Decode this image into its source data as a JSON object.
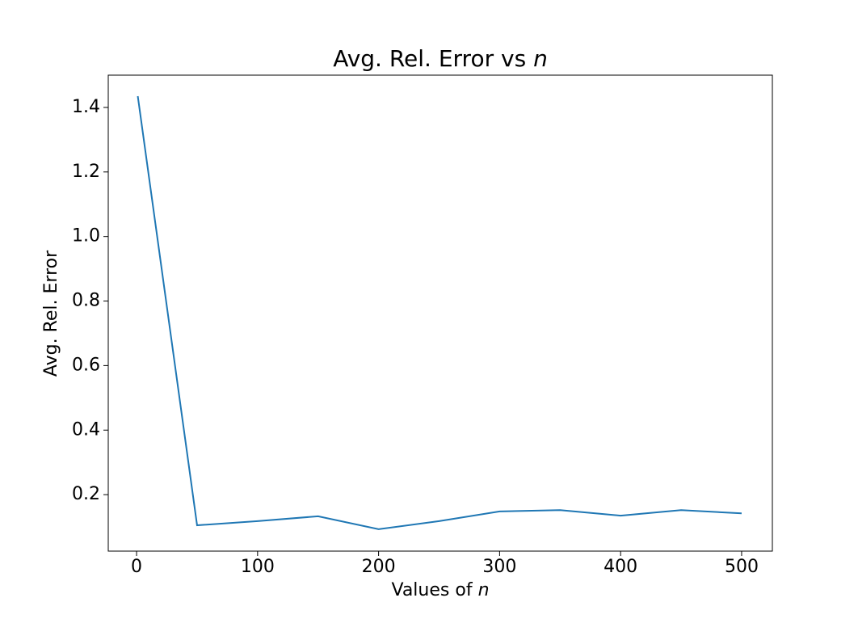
{
  "chart_data": {
    "type": "line",
    "title": "Avg. Rel. Error vs n",
    "xlabel": "Values of n",
    "ylabel": "Avg. Rel. Error",
    "x": [
      1,
      50,
      100,
      150,
      200,
      250,
      300,
      350,
      400,
      450,
      500
    ],
    "series": [
      {
        "name": "Avg. Rel. Error",
        "color": "#1f77b4",
        "values": [
          1.435,
          0.105,
          0.118,
          0.133,
          0.093,
          0.118,
          0.148,
          0.152,
          0.135,
          0.152,
          0.142
        ]
      }
    ],
    "xlim": [
      -23.4,
      525.4
    ],
    "ylim": [
      0.025,
      1.5
    ],
    "xticks": [
      0,
      100,
      200,
      300,
      400,
      500
    ],
    "yticks": [
      {
        "value": 0.2,
        "label": "0.2"
      },
      {
        "value": 0.4,
        "label": "0.4"
      },
      {
        "value": 0.6,
        "label": "0.6"
      },
      {
        "value": 0.8,
        "label": "0.8"
      },
      {
        "value": 1.0,
        "label": "1.0"
      },
      {
        "value": 1.2,
        "label": "1.2"
      },
      {
        "value": 1.4,
        "label": "1.4"
      }
    ],
    "grid": false
  }
}
